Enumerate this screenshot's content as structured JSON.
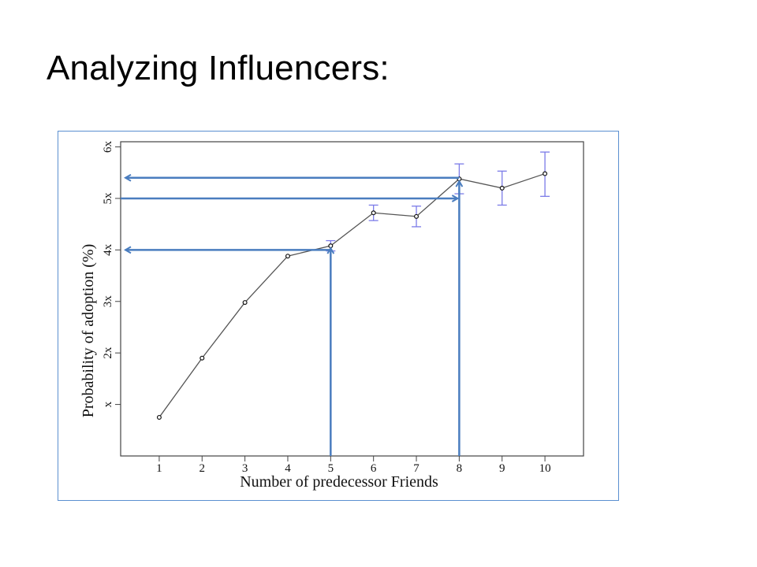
{
  "slide": {
    "title": "Analyzing Influencers:"
  },
  "colors": {
    "line": "#555555",
    "error_bar": "#7b7be8",
    "arrow": "#4a7dbf",
    "frame": "#5b8fd0"
  },
  "chart_data": {
    "type": "line",
    "xlabel": "Number of predecessor Friends",
    "ylabel": "Probability of adoption (%)",
    "x": [
      1,
      2,
      3,
      4,
      5,
      6,
      7,
      8,
      9,
      10
    ],
    "y": [
      1.75,
      2.9,
      3.98,
      4.88,
      5.08,
      5.72,
      5.65,
      6.38,
      6.2,
      6.48
    ],
    "error_low": [
      null,
      null,
      null,
      null,
      4.98,
      5.57,
      5.45,
      6.09,
      5.87,
      6.04
    ],
    "error_high": [
      null,
      null,
      null,
      null,
      5.18,
      5.87,
      5.85,
      6.67,
      6.53,
      6.9
    ],
    "xlim": [
      0.1,
      10.9
    ],
    "ylim": [
      1.0,
      7.1
    ],
    "x_ticks": [
      "1",
      "2",
      "3",
      "4",
      "5",
      "6",
      "7",
      "8",
      "9",
      "10"
    ],
    "y_ticks": [
      {
        "value": 2,
        "label": "x"
      },
      {
        "value": 3,
        "label": "2x"
      },
      {
        "value": 4,
        "label": "3x"
      },
      {
        "value": 5,
        "label": "4x"
      },
      {
        "value": 6,
        "label": "5x"
      },
      {
        "value": 7,
        "label": "6x"
      }
    ],
    "grid": false,
    "annotations": [
      {
        "type": "vertical-arrow",
        "x": 5,
        "y_to": 5.08
      },
      {
        "type": "horizontal-arrow-left",
        "y": 5.0,
        "x_to": 5
      },
      {
        "type": "vertical-arrow",
        "x": 8,
        "y_to": 6.38
      },
      {
        "type": "horizontal-arrow-right",
        "y": 6.0,
        "x_to": 8
      },
      {
        "type": "horizontal-arrow-left",
        "y": 6.4,
        "x_to": 8
      }
    ]
  }
}
